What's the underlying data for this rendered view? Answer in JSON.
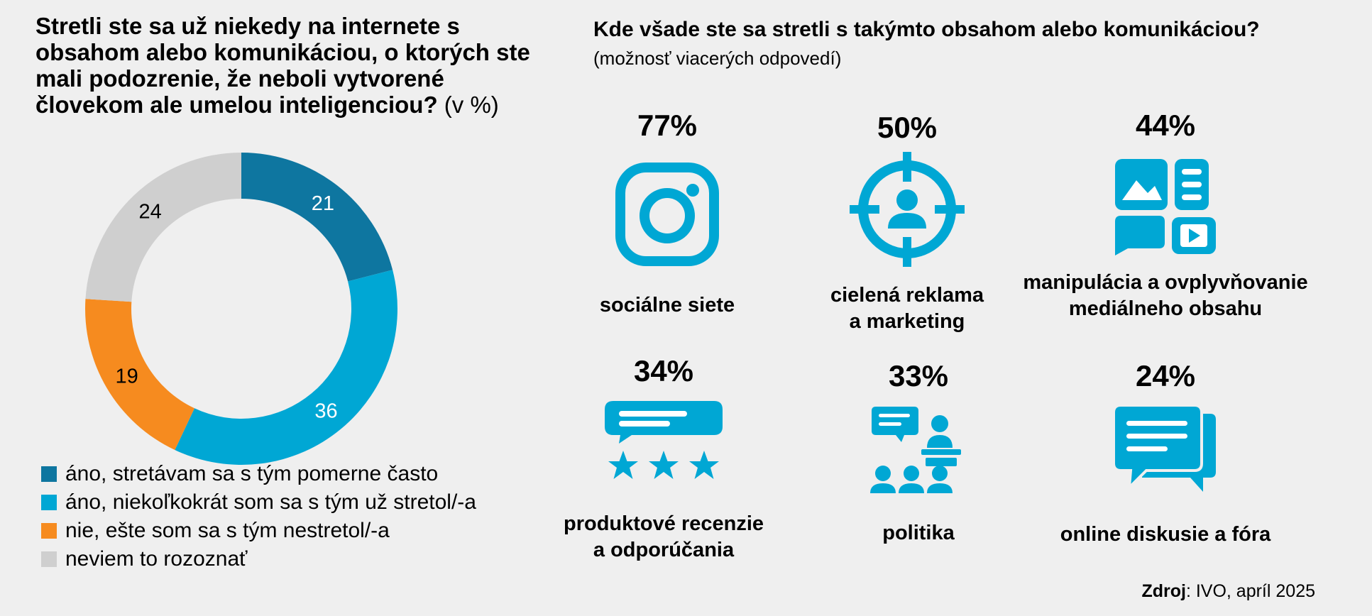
{
  "colors": {
    "accent": "#00a7d4",
    "dark": "#0e76a0",
    "orange": "#f68b1f",
    "grey": "#cfcfcf"
  },
  "left": {
    "title": "Stretli ste sa už niekedy na internete s obsahom alebo komunikáciou, o ktorých ste mali podozrenie, že neboli vytvorené človekom ale umelou inteligenciou?",
    "unit": "(v %)"
  },
  "chart_data": {
    "type": "pie",
    "donut": true,
    "categories": [
      "áno, stretávam sa s tým pomerne často",
      "áno, niekoľkokrát som sa s tým už stretol/-a",
      "nie, ešte som sa s tým nestretol/-a",
      "neviem to rozoznať"
    ],
    "values": [
      21,
      36,
      19,
      24
    ],
    "colors": [
      "#0e76a0",
      "#00a7d4",
      "#f68b1f",
      "#cfcfcf"
    ],
    "label_colors": [
      "#ffffff",
      "#ffffff",
      "#000000",
      "#000000"
    ],
    "legend": "bottom"
  },
  "right": {
    "title": "Kde všade ste sa stretli s takýmto obsahom alebo komunikáciou?",
    "subtitle": "(možnosť viacerých odpovedí)",
    "items": [
      {
        "pct": "77%",
        "label1": "sociálne siete",
        "label2": "",
        "icon": "instagram-icon"
      },
      {
        "pct": "50%",
        "label1": "cielená reklama",
        "label2": "a marketing",
        "icon": "target-person-icon"
      },
      {
        "pct": "44%",
        "label1": "manipulácia a ovplyvňovanie",
        "label2": "mediálneho obsahu",
        "icon": "media-content-icon"
      },
      {
        "pct": "34%",
        "label1": "produktové recenzie",
        "label2": "a odporúčania",
        "icon": "review-stars-icon"
      },
      {
        "pct": "33%",
        "label1": "politika",
        "label2": "",
        "icon": "politician-audience-icon"
      },
      {
        "pct": "24%",
        "label1": "online diskusie a fóra",
        "label2": "",
        "icon": "discussion-bubbles-icon"
      }
    ]
  },
  "source": {
    "key": "Zdroj",
    "text": ": IVO, apríl 2025"
  }
}
